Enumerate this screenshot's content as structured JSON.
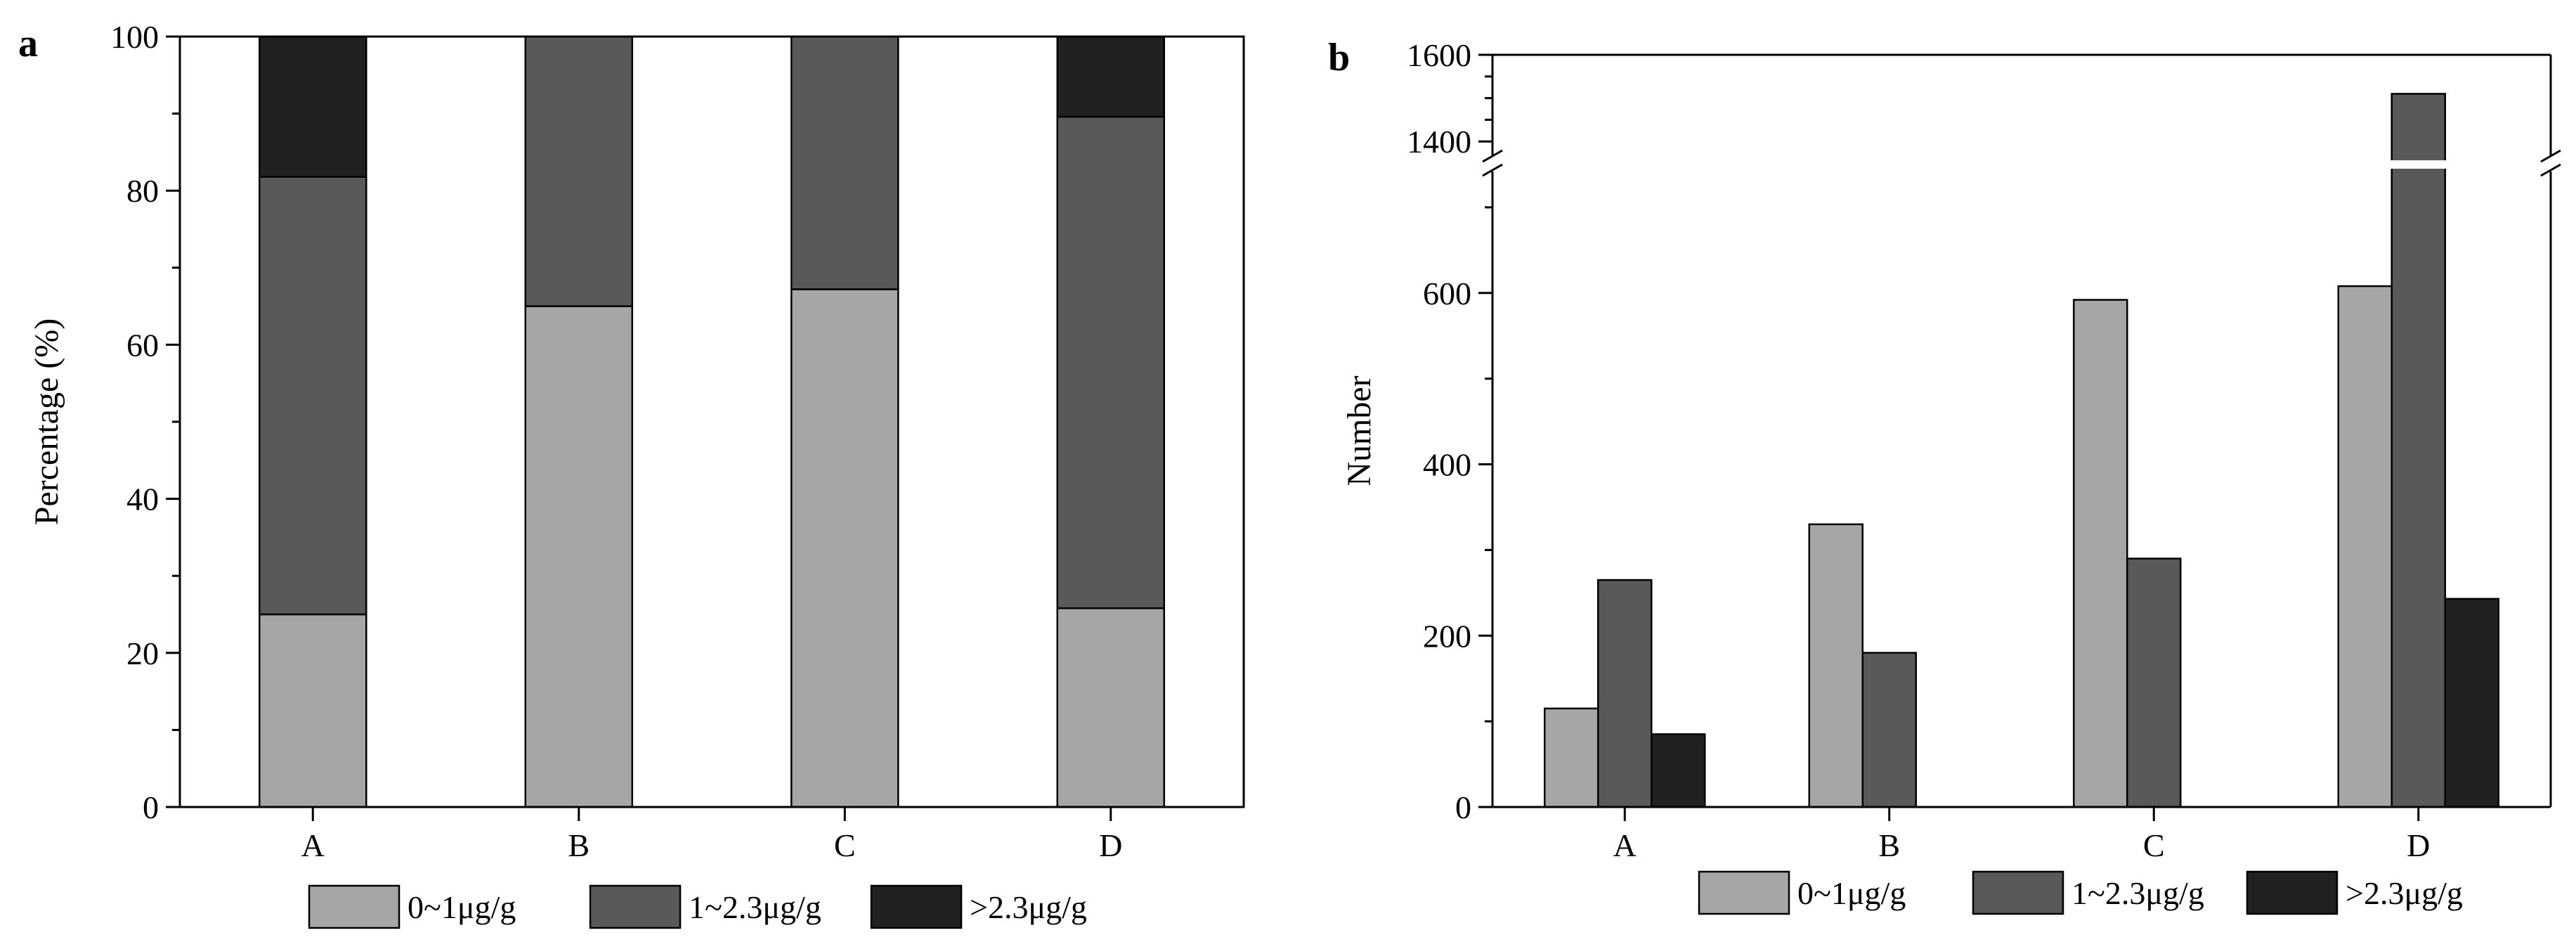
{
  "colors": {
    "low": "#a6a6a6",
    "mid": "#595959",
    "high": "#212121"
  },
  "chart_data": [
    {
      "panel": "a",
      "type": "bar",
      "stacked": true,
      "categories": [
        "A",
        "B",
        "C",
        "D"
      ],
      "ylabel": "Percentage (%)",
      "xlabel": "",
      "ylim": [
        0,
        100
      ],
      "yticks": [
        0,
        20,
        40,
        60,
        80,
        100
      ],
      "series": [
        {
          "name": "0~1μg/g",
          "color_key": "low",
          "values": [
            25,
            65,
            67.2,
            25.8
          ]
        },
        {
          "name": "1~2.3μg/g",
          "color_key": "mid",
          "values": [
            56.8,
            35,
            32.8,
            63.8
          ]
        },
        {
          "name": ">2.3μg/g",
          "color_key": "high",
          "values": [
            18.2,
            0,
            0,
            10.4
          ]
        }
      ],
      "legend_position": "bottom"
    },
    {
      "panel": "b",
      "type": "bar",
      "stacked": false,
      "categories": [
        "A",
        "B",
        "C",
        "D"
      ],
      "ylabel": "Number",
      "xlabel": "",
      "ylim": [
        0,
        1600
      ],
      "axis_break": [
        750,
        1350
      ],
      "yticks": [
        0,
        200,
        400,
        600,
        1400,
        1600
      ],
      "series": [
        {
          "name": "0~1μg/g",
          "color_key": "low",
          "values": [
            115,
            330,
            592,
            608
          ]
        },
        {
          "name": "1~2.3μg/g",
          "color_key": "mid",
          "values": [
            265,
            180,
            290,
            1510
          ]
        },
        {
          "name": ">2.3μg/g",
          "color_key": "high",
          "values": [
            85,
            0,
            0,
            243
          ]
        }
      ],
      "legend_position": "bottom"
    }
  ]
}
